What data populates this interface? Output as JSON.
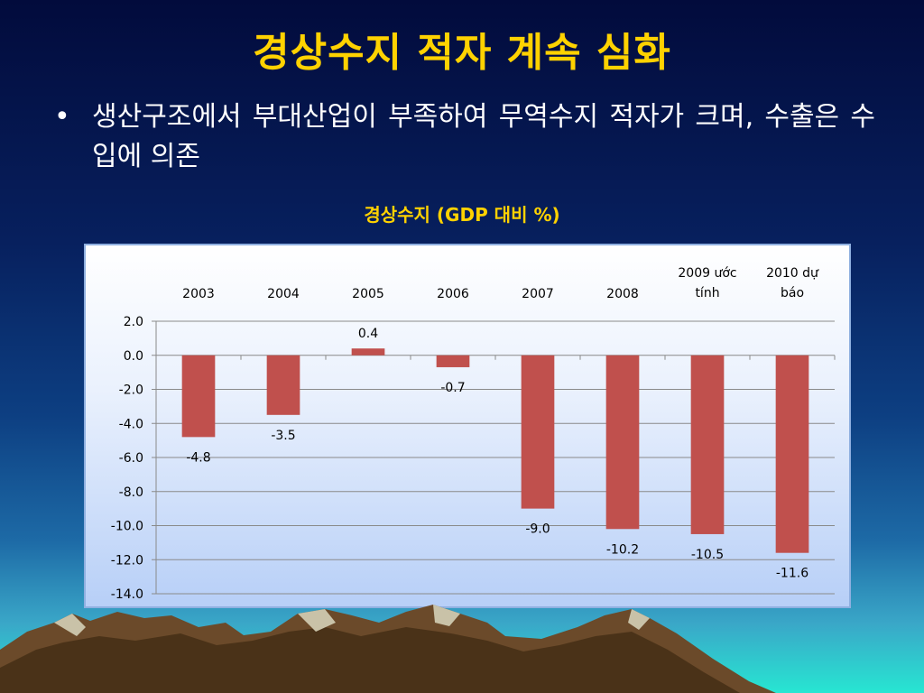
{
  "slide": {
    "title": "경상수지 적자 계속 심화",
    "bullet": "생산구조에서 부대산업이 부족하여 무역수지 적자가 크며, 수출은 수입에 의존"
  },
  "chart_data": {
    "type": "bar",
    "title": "경상수지 (GDP 대비 %)",
    "categories": [
      "2003",
      "2004",
      "2005",
      "2006",
      "2007",
      "2008",
      "2009 ước tính",
      "2010 dự báo"
    ],
    "category_lines": [
      [
        "2003"
      ],
      [
        "2004"
      ],
      [
        "2005"
      ],
      [
        "2006"
      ],
      [
        "2007"
      ],
      [
        "2008"
      ],
      [
        "2009 ước",
        "tính"
      ],
      [
        "2010 dự",
        "báo"
      ]
    ],
    "values": [
      -4.8,
      -3.5,
      0.4,
      -0.7,
      -9.0,
      -10.2,
      -10.5,
      -11.6
    ],
    "value_labels": [
      "-4.8",
      "-3.5",
      "0.4",
      "-0.7",
      "-9.0",
      "-10.2",
      "-10.5",
      "-11.6"
    ],
    "yticks": [
      "2.0",
      "0.0",
      "-2.0",
      "-4.0",
      "-6.0",
      "-8.0",
      "-10.0",
      "-12.0",
      "-14.0"
    ],
    "ylim": [
      -14,
      2
    ],
    "grid": true,
    "legend": "none",
    "xaxis_position": "top",
    "colors": {
      "bar": "#c0504d",
      "grid": "#8a8a8a",
      "text": "#000000"
    }
  }
}
